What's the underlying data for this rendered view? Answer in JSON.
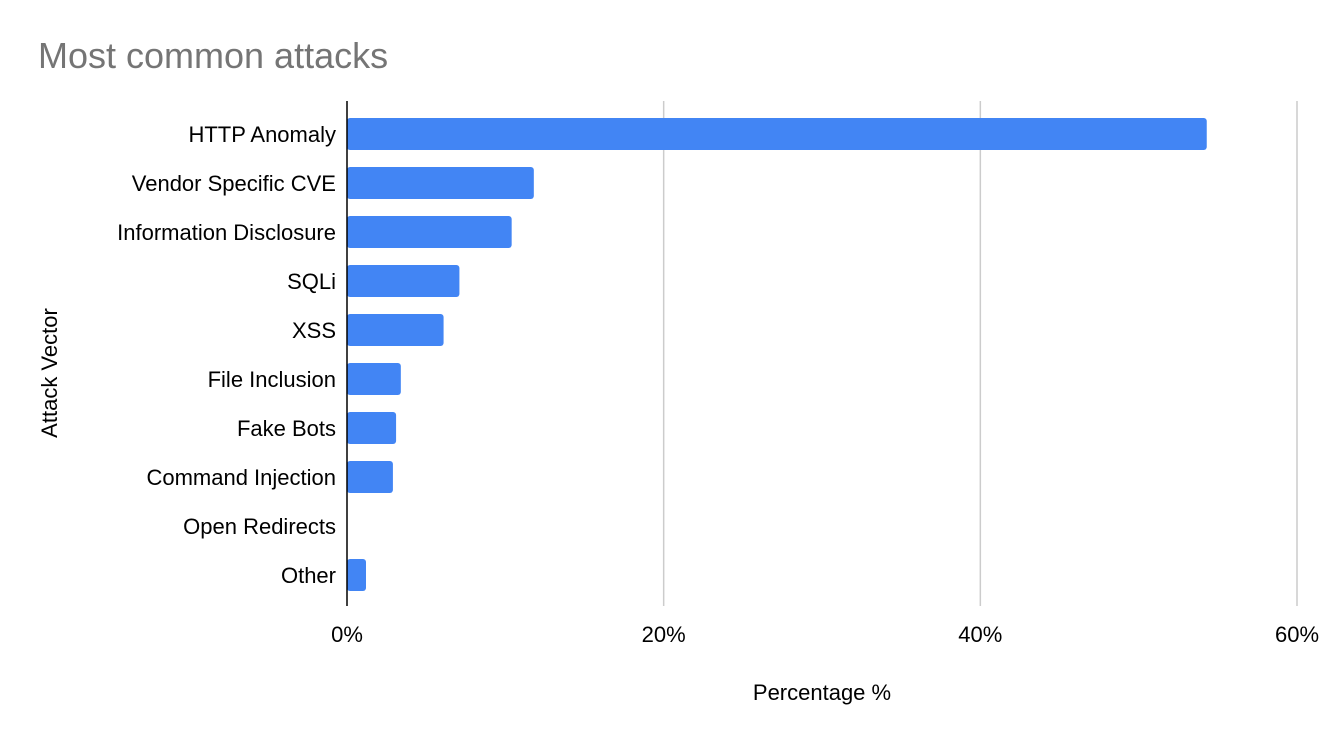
{
  "chart_data": {
    "type": "bar",
    "orientation": "horizontal",
    "title": "Most common attacks",
    "xlabel": "Percentage %",
    "ylabel": "Attack Vector",
    "categories": [
      "HTTP Anomaly",
      "Vendor Specific CVE",
      "Information Disclosure",
      "SQLi",
      "XSS",
      "File Inclusion",
      "Fake Bots",
      "Command Injection",
      "Open Redirects",
      "Other"
    ],
    "values": [
      54.3,
      11.8,
      10.4,
      7.1,
      6.1,
      3.4,
      3.1,
      2.9,
      0.0,
      1.2
    ],
    "xlim": [
      0,
      60
    ],
    "x_ticks": [
      0,
      20,
      40,
      60
    ],
    "x_tick_labels": [
      "0%",
      "20%",
      "40%",
      "60%"
    ],
    "grid": true,
    "legend": "none",
    "bar_color": "#4285f4",
    "gridline_color": "#cccccc",
    "title_color": "#757575"
  }
}
